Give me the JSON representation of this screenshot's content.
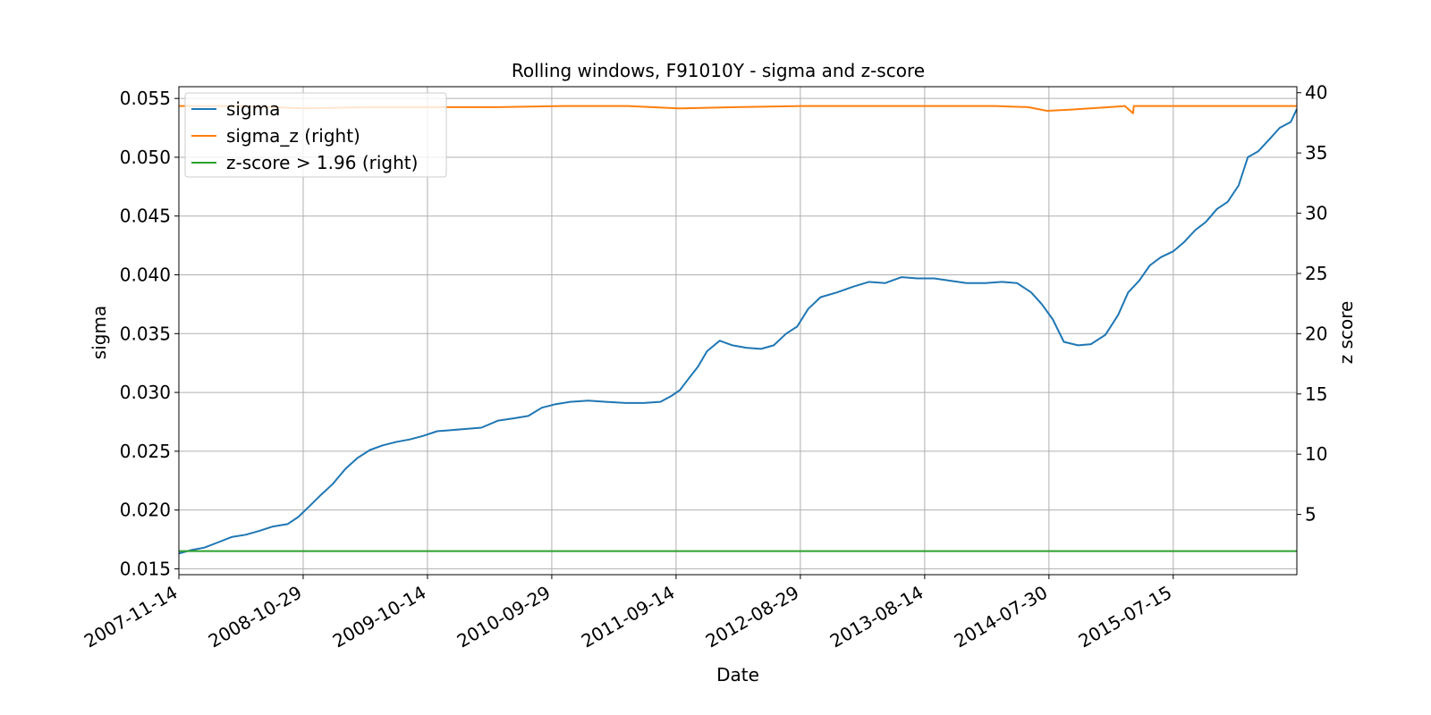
{
  "chart_data": {
    "type": "line",
    "title": "Rolling windows, F91010Y - sigma and z-score",
    "xlabel": "Date",
    "ylabel": "sigma",
    "y2label": "z score",
    "grid": true,
    "legend_position": "upper-left",
    "xlim": [
      "2007-11-14",
      "2016-06-27"
    ],
    "ylim": [
      0.0145,
      0.056
    ],
    "y2lim": [
      0.0,
      40.5
    ],
    "x_tick_labels": [
      "2007-11-14",
      "2008-10-29",
      "2009-10-14",
      "2010-09-29",
      "2011-09-14",
      "2012-08-29",
      "2013-08-14",
      "2014-07-30",
      "2015-07-15"
    ],
    "y_ticks": [
      0.015,
      0.02,
      0.025,
      0.03,
      0.035,
      0.04,
      0.045,
      0.05,
      0.055
    ],
    "y_tick_labels": [
      "0.015",
      "0.020",
      "0.025",
      "0.030",
      "0.035",
      "0.040",
      "0.045",
      "0.050",
      "0.055"
    ],
    "y2_ticks": [
      5,
      10,
      15,
      20,
      25,
      30,
      35,
      40
    ],
    "y2_tick_labels": [
      "5",
      "10",
      "15",
      "20",
      "25",
      "30",
      "35",
      "40"
    ],
    "series": [
      {
        "name": "sigma",
        "axis": "left",
        "color": "#1f77b4",
        "x": [
          "2007-11-14",
          "2007-12-20",
          "2008-01-25",
          "2008-02-28",
          "2008-04-10",
          "2008-05-20",
          "2008-06-25",
          "2008-08-05",
          "2008-09-15",
          "2008-10-15",
          "2008-11-15",
          "2008-12-15",
          "2009-01-20",
          "2009-02-25",
          "2009-03-30",
          "2009-05-05",
          "2009-06-10",
          "2009-07-20",
          "2009-08-25",
          "2009-10-01",
          "2009-11-10",
          "2009-12-20",
          "2010-02-01",
          "2010-03-15",
          "2010-05-01",
          "2010-06-15",
          "2010-07-25",
          "2010-09-01",
          "2010-10-10",
          "2010-11-20",
          "2011-01-10",
          "2011-03-01",
          "2011-04-25",
          "2011-06-15",
          "2011-08-01",
          "2011-09-01",
          "2011-09-25",
          "2011-10-20",
          "2011-11-15",
          "2011-12-10",
          "2012-01-15",
          "2012-02-20",
          "2012-03-30",
          "2012-05-10",
          "2012-06-15",
          "2012-07-20",
          "2012-08-20",
          "2012-09-20",
          "2012-10-25",
          "2012-12-10",
          "2013-01-25",
          "2013-03-10",
          "2013-04-25",
          "2013-06-10",
          "2013-07-25",
          "2013-09-10",
          "2013-10-25",
          "2013-12-10",
          "2014-02-01",
          "2014-03-20",
          "2014-05-01",
          "2014-06-10",
          "2014-07-10",
          "2014-08-10",
          "2014-09-10",
          "2014-10-20",
          "2014-11-25",
          "2015-01-05",
          "2015-02-10",
          "2015-03-10",
          "2015-04-10",
          "2015-05-10",
          "2015-06-10",
          "2015-07-15",
          "2015-08-15",
          "2015-09-15",
          "2015-10-15",
          "2015-11-15",
          "2015-12-15",
          "2016-01-15",
          "2016-02-10",
          "2016-03-10",
          "2016-04-10",
          "2016-05-10",
          "2016-06-10",
          "2016-06-27"
        ],
        "values": [
          0.0163,
          0.0166,
          0.0168,
          0.0172,
          0.0177,
          0.0179,
          0.0182,
          0.0186,
          0.0188,
          0.0194,
          0.0203,
          0.0212,
          0.0222,
          0.0235,
          0.0244,
          0.0251,
          0.0255,
          0.0258,
          0.026,
          0.0263,
          0.0267,
          0.0268,
          0.0269,
          0.027,
          0.0276,
          0.0278,
          0.028,
          0.0287,
          0.029,
          0.0292,
          0.0293,
          0.0292,
          0.0291,
          0.0291,
          0.0292,
          0.0297,
          0.0302,
          0.0312,
          0.0322,
          0.0335,
          0.0344,
          0.034,
          0.0338,
          0.0337,
          0.034,
          0.035,
          0.0356,
          0.0371,
          0.0381,
          0.0385,
          0.039,
          0.0394,
          0.0393,
          0.0398,
          0.0397,
          0.0397,
          0.0395,
          0.0393,
          0.0393,
          0.0394,
          0.0393,
          0.0385,
          0.0375,
          0.0362,
          0.0343,
          0.034,
          0.0341,
          0.0349,
          0.0366,
          0.0385,
          0.0395,
          0.0408,
          0.0415,
          0.042,
          0.0428,
          0.0438,
          0.0445,
          0.0456,
          0.0462,
          0.0476,
          0.05,
          0.0505,
          0.0515,
          0.0525,
          0.053,
          0.0541
        ]
      },
      {
        "name": "sigma_z (right)",
        "axis": "right",
        "color": "#ff7f0e",
        "x": [
          "2007-11-14",
          "2008-05-01",
          "2008-11-01",
          "2009-05-01",
          "2009-11-01",
          "2010-05-01",
          "2010-11-01",
          "2011-05-01",
          "2011-09-20",
          "2012-03-01",
          "2012-09-01",
          "2013-03-01",
          "2013-09-01",
          "2014-03-01",
          "2014-06-01",
          "2014-07-25",
          "2014-10-01",
          "2015-01-15",
          "2015-03-01",
          "2015-03-24",
          "2015-03-26",
          "2015-04-05",
          "2015-07-01",
          "2016-01-01",
          "2016-06-27"
        ],
        "values": [
          38.9,
          38.9,
          38.7,
          38.8,
          38.8,
          38.8,
          38.9,
          38.9,
          38.7,
          38.8,
          38.9,
          38.9,
          38.9,
          38.9,
          38.8,
          38.5,
          38.6,
          38.8,
          38.9,
          38.3,
          38.9,
          38.9,
          38.9,
          38.9,
          38.9
        ]
      },
      {
        "name": "z-score > 1.96 (right)",
        "axis": "right",
        "color": "#2ca02c",
        "x": [
          "2007-11-14",
          "2016-06-27"
        ],
        "values": [
          1.96,
          1.96
        ]
      }
    ]
  }
}
